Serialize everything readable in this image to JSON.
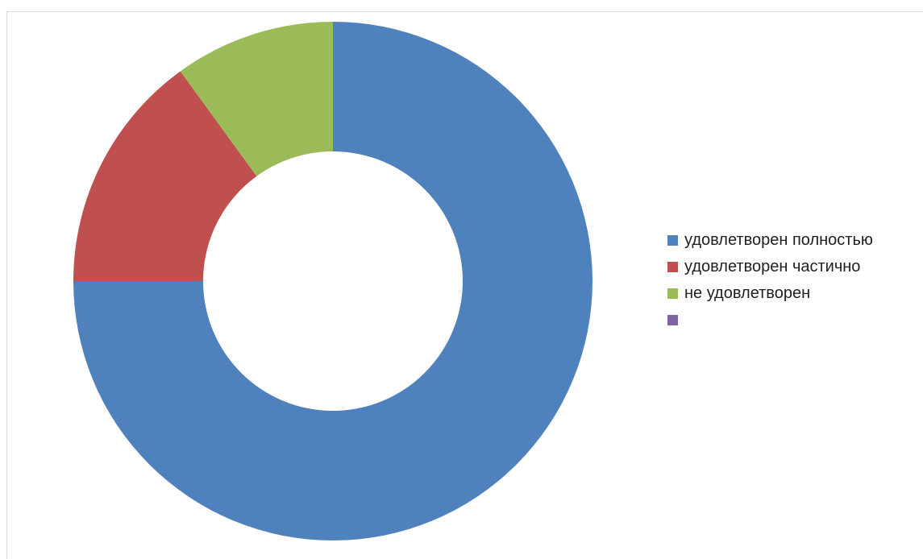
{
  "chart_data": {
    "type": "pie",
    "variant": "donut",
    "categories": [
      "удовлетворен полностью",
      "удовлетворен частично",
      "не удовлетворен",
      ""
    ],
    "values": [
      75,
      15,
      10,
      0
    ],
    "colors": [
      "#4f81bd",
      "#c0504d",
      "#9bbb59",
      "#8064a2"
    ],
    "legend": {
      "position": "right",
      "entries": [
        "удовлетворен полностью",
        "удовлетворен частично",
        "не удовлетворен",
        ""
      ]
    },
    "start_angle": "12 o'clock",
    "direction": "clockwise"
  }
}
